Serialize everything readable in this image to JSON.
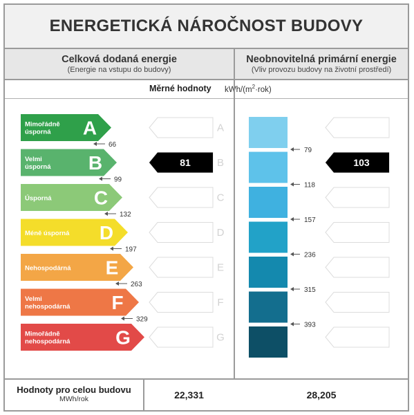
{
  "title": "ENERGETICKÁ NÁROČNOST BUDOVY",
  "left_column": {
    "heading": "Celková dodaná energie",
    "subheading": "(Energie na vstupu do budovy)",
    "value": "81",
    "value_class": "B"
  },
  "right_column": {
    "heading": "Neobnovitelná primární energie",
    "subheading": "(Vliv provozu budovy na životní prostředí)",
    "value": "103",
    "value_class": "B"
  },
  "units_row": {
    "label": "Měrné hodnoty",
    "unit_prefix": "kWh/(m",
    "unit_exp": "2",
    "unit_suffix": "·rok)"
  },
  "classes": [
    {
      "letter": "A",
      "name_lines": [
        "Mimořádně",
        "úsporná"
      ],
      "color": "#2fa04a",
      "limit": "66"
    },
    {
      "letter": "B",
      "name_lines": [
        "Velmi",
        "úsporná"
      ],
      "color": "#59b36d",
      "limit": "99"
    },
    {
      "letter": "C",
      "name_lines": [
        "Úsporná"
      ],
      "color": "#8cc978",
      "limit": "132"
    },
    {
      "letter": "D",
      "name_lines": [
        "Méně úsporná"
      ],
      "color": "#f4dd2a",
      "limit": "197"
    },
    {
      "letter": "E",
      "name_lines": [
        "Nehospodárná"
      ],
      "color": "#f3a646",
      "limit": "263"
    },
    {
      "letter": "F",
      "name_lines": [
        "Velmi",
        "nehospodárná"
      ],
      "color": "#ee7746",
      "limit": "329"
    },
    {
      "letter": "G",
      "name_lines": [
        "Mimořádně",
        "nehospodárná"
      ],
      "color": "#e24a48",
      "limit": ""
    }
  ],
  "primary_classes": [
    {
      "color": "#7fcfee",
      "limit": "79"
    },
    {
      "color": "#5ec2ea",
      "limit": "118"
    },
    {
      "color": "#3fb1e0",
      "limit": "157"
    },
    {
      "color": "#22a2c8",
      "limit": "236"
    },
    {
      "color": "#1489ae",
      "limit": "315"
    },
    {
      "color": "#136e8e",
      "limit": "393"
    },
    {
      "color": "#0d4f66",
      "limit": ""
    }
  ],
  "bottom": {
    "label": "Hodnoty pro celou budovu",
    "unit": "MWh/rok",
    "left_total": "22,331",
    "right_total": "28,205"
  }
}
